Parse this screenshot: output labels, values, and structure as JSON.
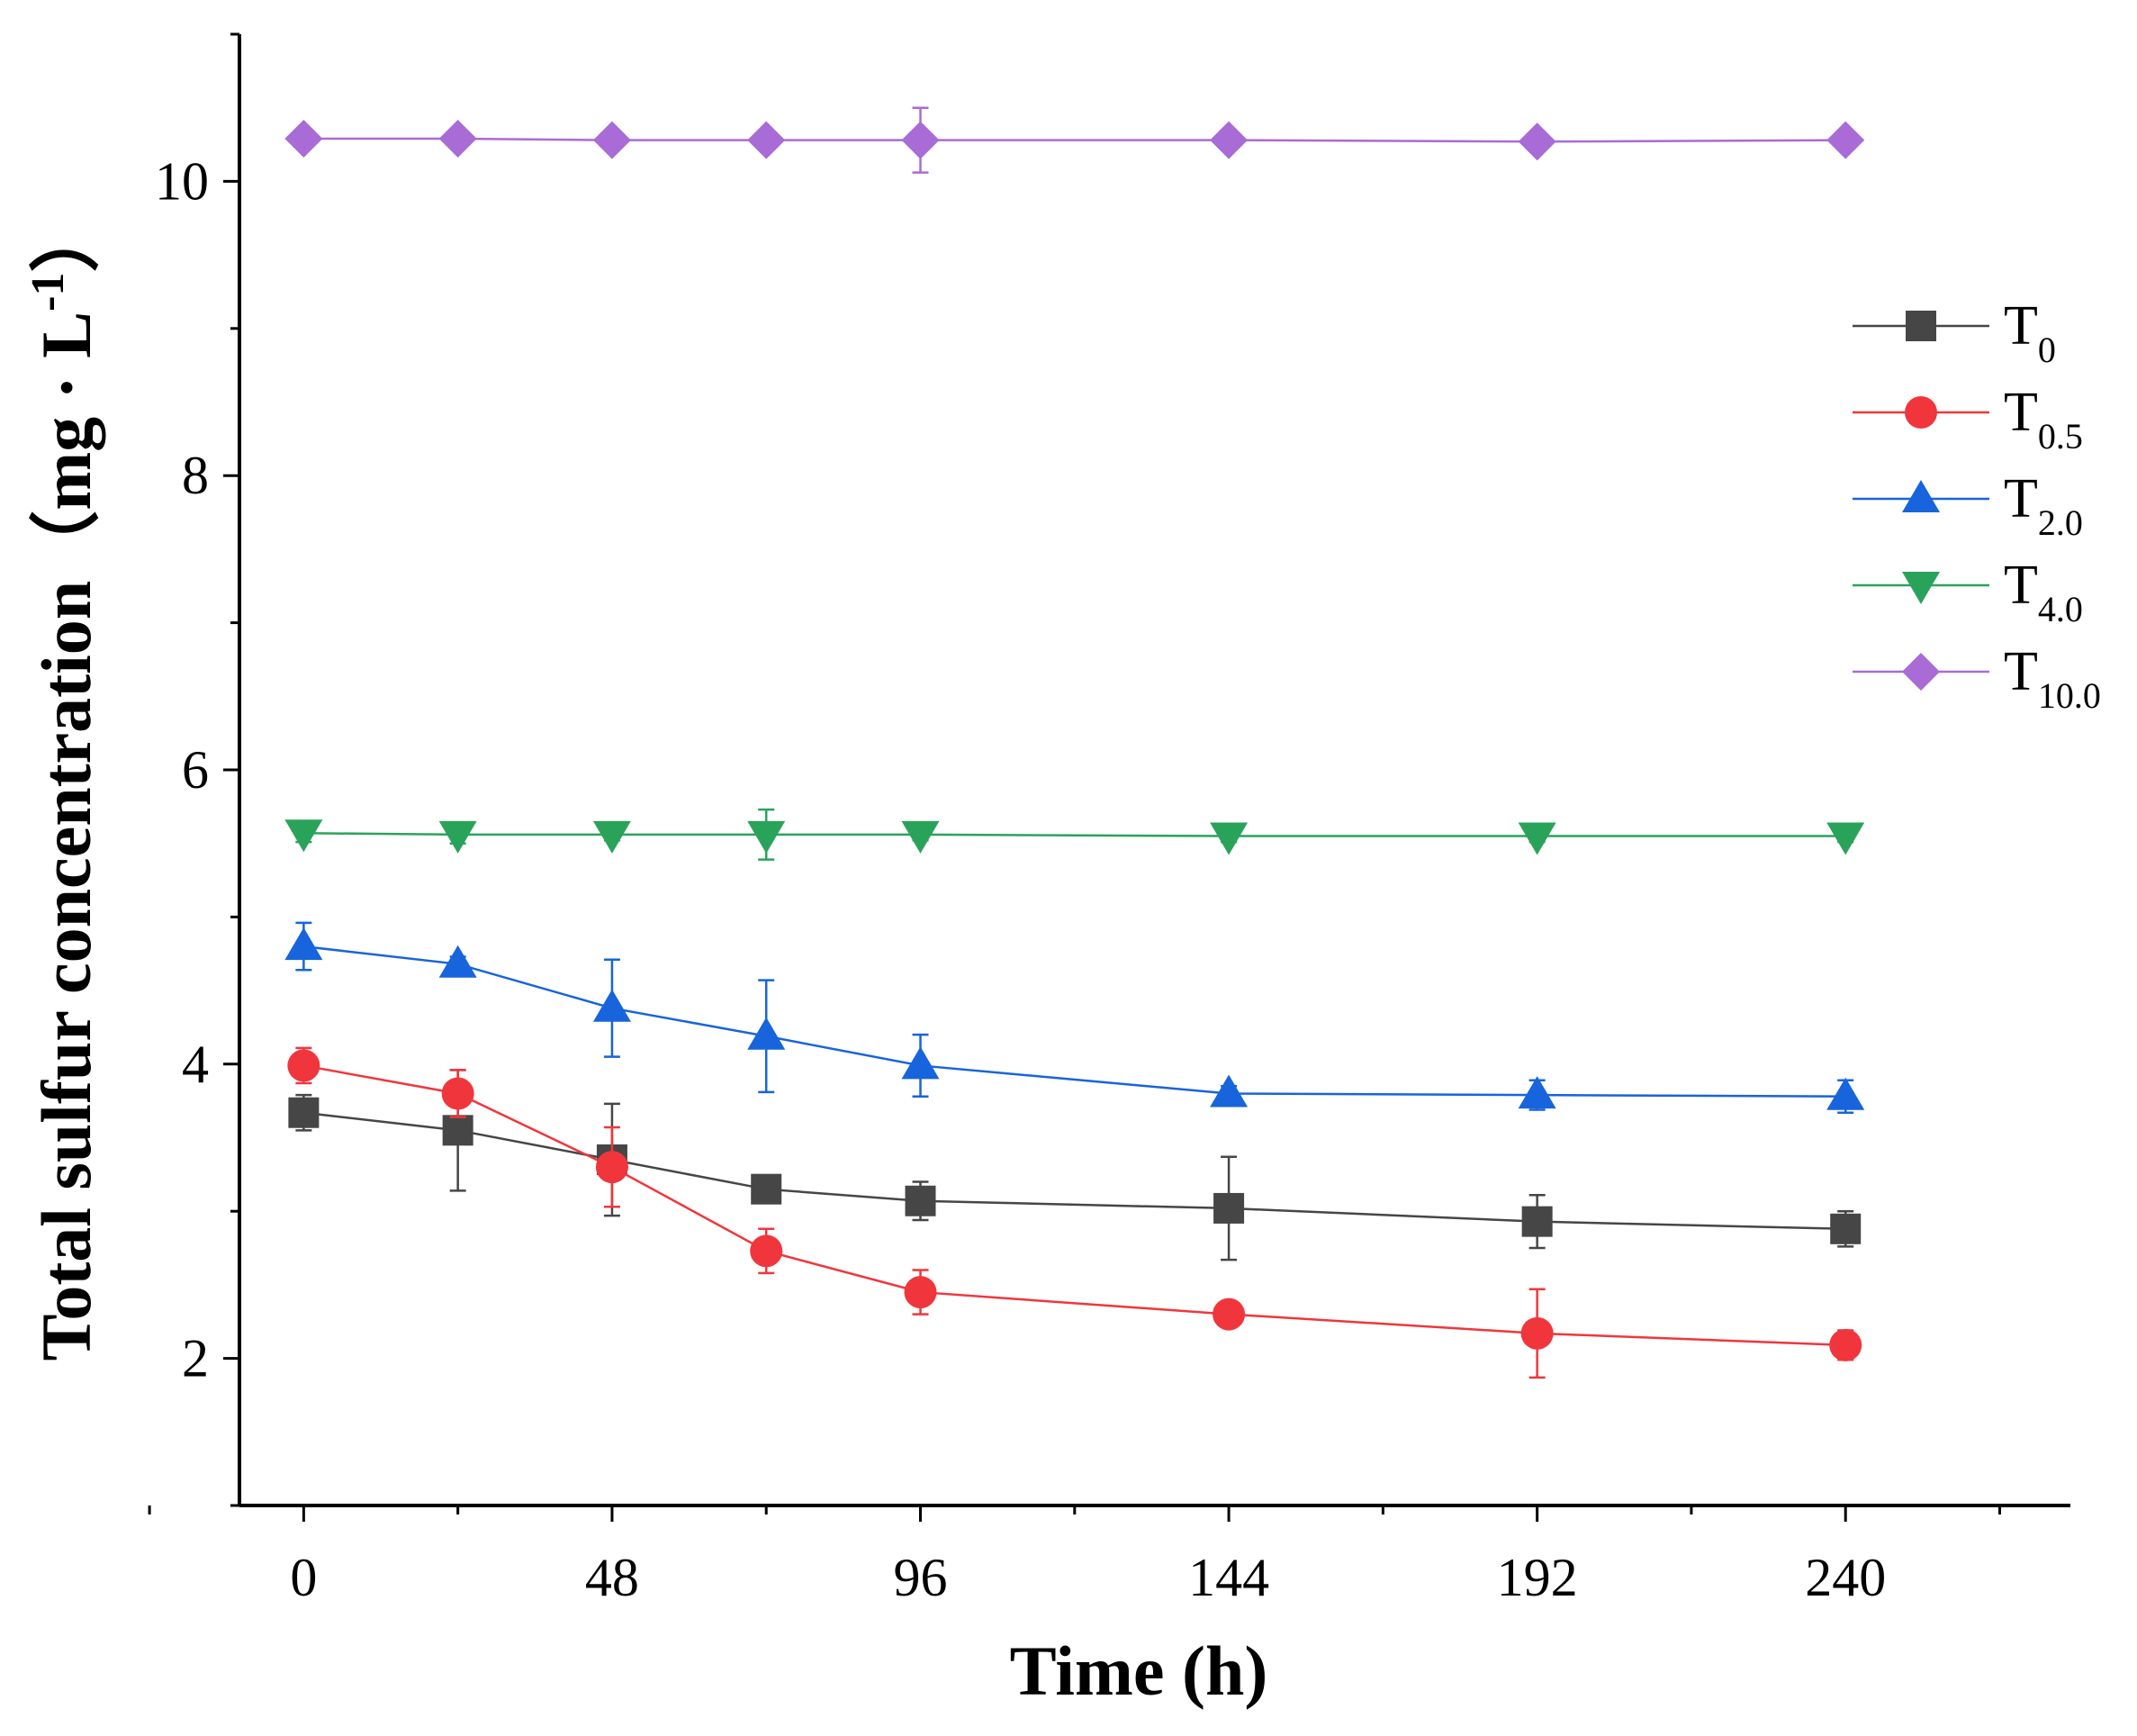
{
  "chart_data": {
    "type": "line",
    "title": "",
    "xlabel": "Time  (h)",
    "ylabel": {
      "main": "Total sulfur concentration（mg · L",
      "sup": "-1",
      "close": "）"
    },
    "xlim": [
      -10,
      275
    ],
    "ylim": [
      1,
      11
    ],
    "xticks": [
      0,
      48,
      96,
      144,
      192,
      240
    ],
    "yticks": [
      2,
      4,
      6,
      8,
      10
    ],
    "x": [
      0,
      24,
      48,
      72,
      96,
      144,
      192,
      240
    ],
    "legend_position": "right",
    "series": [
      {
        "name": "T",
        "sub": "0",
        "color": "#464646",
        "marker": "square",
        "values": [
          3.67,
          3.55,
          3.35,
          3.15,
          3.07,
          3.02,
          2.93,
          2.88
        ],
        "errors": [
          0.12,
          0.41,
          0.38,
          0.08,
          0.13,
          0.35,
          0.18,
          0.12
        ]
      },
      {
        "name": "T",
        "sub": "0.5",
        "color": "#f0363c",
        "marker": "circle",
        "values": [
          3.99,
          3.8,
          3.3,
          2.73,
          2.45,
          2.3,
          2.17,
          2.09
        ],
        "errors": [
          0.12,
          0.16,
          0.27,
          0.15,
          0.15,
          0.05,
          0.3,
          0.1
        ]
      },
      {
        "name": "T",
        "sub": "2.0",
        "color": "#1764dc",
        "marker": "triangle-up",
        "values": [
          4.8,
          4.68,
          4.38,
          4.19,
          3.99,
          3.8,
          3.79,
          3.78
        ],
        "errors": [
          0.16,
          0.05,
          0.33,
          0.38,
          0.21,
          0.05,
          0.1,
          0.11
        ]
      },
      {
        "name": "T",
        "sub": "4.0",
        "color": "#2aa35a",
        "marker": "triangle-down",
        "values": [
          5.57,
          5.56,
          5.56,
          5.56,
          5.56,
          5.55,
          5.55,
          5.55
        ],
        "errors": [
          0.06,
          0.06,
          0.04,
          0.17,
          0.04,
          0.04,
          0.04,
          0.04
        ]
      },
      {
        "name": "T",
        "sub": "10.0",
        "color": "#a96bd6",
        "marker": "diamond",
        "values": [
          10.29,
          10.29,
          10.28,
          10.28,
          10.28,
          10.28,
          10.27,
          10.28
        ],
        "errors": [
          0.03,
          0.03,
          0.03,
          0.03,
          0.22,
          0.03,
          0.03,
          0.03
        ]
      }
    ]
  }
}
